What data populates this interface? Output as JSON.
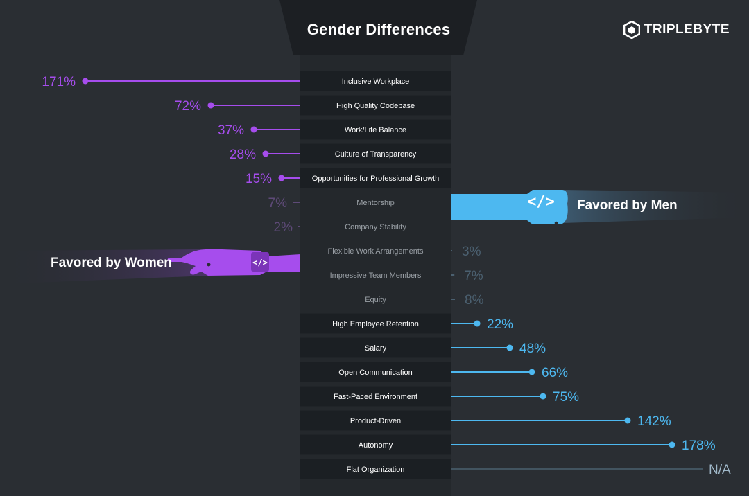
{
  "header": {
    "title": "Gender Differences",
    "brand": "TRIPLEBYTE"
  },
  "labels": {
    "favored_women": "Favored by Women",
    "favored_men": "Favored by Men",
    "hand_icon_women": "code-bracket-icon",
    "hand_icon_men": "code-bracket-icon"
  },
  "colors": {
    "women": "#a64ded",
    "men": "#4db8f0",
    "women_faded": "#5e4a78",
    "men_faded": "#4b6070",
    "row_bg": "#1b1f23",
    "background": "#2a2e33"
  },
  "chart_data": {
    "type": "bar",
    "orientation": "diverging-lollipop",
    "title": "Gender Differences",
    "unit": "%",
    "categories": [
      "Inclusive Workplace",
      "High Quality Codebase",
      "Work/Life Balance",
      "Culture of Transparency",
      "Opportunities for Professional Growth",
      "Mentorship",
      "Company Stability",
      "Flexible Work Arrangements",
      "Impressive Team Members",
      "Equity",
      "High Employee Retention",
      "Salary",
      "Open Communication",
      "Fast-Paced Environment",
      "Product-Driven",
      "Autonomy",
      "Flat Organization"
    ],
    "series": [
      {
        "name": "Favored by Women",
        "values": [
          171,
          72,
          37,
          28,
          15,
          7,
          2,
          null,
          null,
          null,
          null,
          null,
          null,
          null,
          null,
          null,
          null
        ]
      },
      {
        "name": "Favored by Men",
        "values": [
          null,
          null,
          null,
          null,
          null,
          null,
          null,
          3,
          7,
          8,
          22,
          48,
          66,
          75,
          142,
          178,
          null
        ]
      }
    ],
    "value_labels": [
      "171%",
      "72%",
      "37%",
      "28%",
      "15%",
      "7%",
      "2%",
      "3%",
      "7%",
      "8%",
      "22%",
      "48%",
      "66%",
      "75%",
      "142%",
      "178%",
      "N/A"
    ],
    "not_applicable_label": "N/A",
    "xlim": [
      0,
      180
    ],
    "grid": false
  }
}
